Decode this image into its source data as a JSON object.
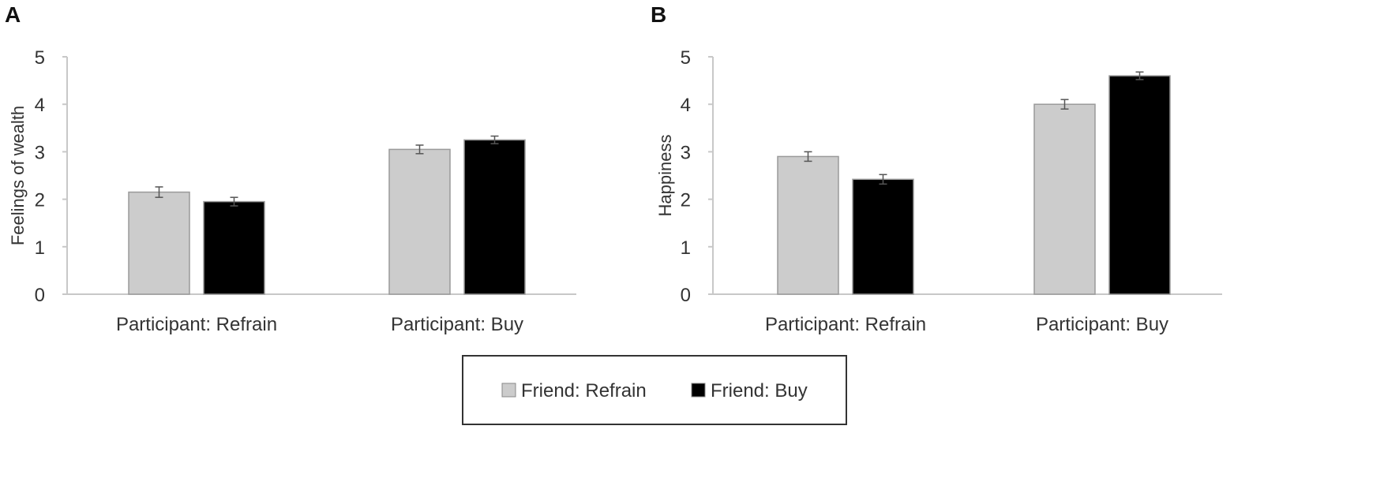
{
  "panels": [
    {
      "letter": "A",
      "chart_data": {
        "type": "bar",
        "title": "",
        "xlabel": "",
        "ylabel": "Feelings of wealth",
        "categories": [
          "Participant: Refrain",
          "Participant: Buy"
        ],
        "series": [
          {
            "name": "Friend: Refrain",
            "values": [
              2.15,
              3.05
            ],
            "errors": [
              0.11,
              0.09
            ]
          },
          {
            "name": "Friend: Buy",
            "values": [
              1.95,
              3.25
            ],
            "errors": [
              0.09,
              0.08
            ]
          }
        ],
        "ylim": [
          0,
          5
        ],
        "yticks": [
          "0",
          "1",
          "2",
          "3",
          "4",
          "5"
        ],
        "grid": false
      }
    },
    {
      "letter": "B",
      "chart_data": {
        "type": "bar",
        "title": "",
        "xlabel": "",
        "ylabel": "Happiness",
        "categories": [
          "Participant: Refrain",
          "Participant: Buy"
        ],
        "series": [
          {
            "name": "Friend: Refrain",
            "values": [
              2.9,
              4.0
            ],
            "errors": [
              0.1,
              0.1
            ]
          },
          {
            "name": "Friend: Buy",
            "values": [
              2.42,
              4.6
            ],
            "errors": [
              0.1,
              0.08
            ]
          }
        ],
        "ylim": [
          0,
          5
        ],
        "yticks": [
          "0",
          "1",
          "2",
          "3",
          "4",
          "5"
        ],
        "grid": false
      }
    }
  ],
  "legend": {
    "placement": "bottom-center",
    "items": [
      {
        "label": "Friend: Refrain",
        "color": "#cccccc"
      },
      {
        "label": "Friend: Buy",
        "color": "#000000"
      }
    ]
  },
  "colors": {
    "series": [
      "#cccccc",
      "#000000"
    ],
    "bar_stroke": "#9a9a9a",
    "axis": "#c8c8c8",
    "error_bar": "#555555"
  }
}
